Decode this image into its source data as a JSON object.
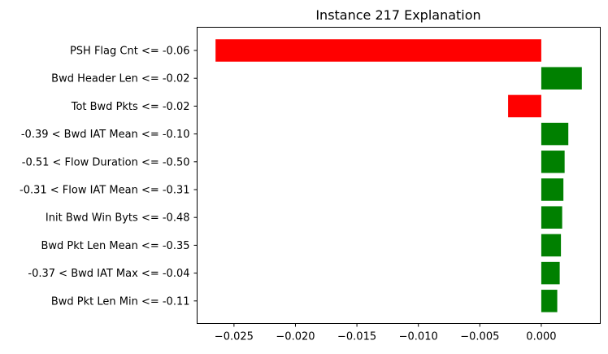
{
  "chart_data": {
    "type": "bar",
    "orientation": "horizontal",
    "title": "Instance 217 Explanation",
    "categories": [
      "PSH Flag Cnt <= -0.06",
      "Bwd Header Len <= -0.02",
      "Tot Bwd Pkts <= -0.02",
      "-0.39 < Bwd IAT Mean <= -0.10",
      "-0.51 < Flow Duration <= -0.50",
      "-0.31 < Flow IAT Mean <= -0.31",
      "Init Bwd Win Byts <= -0.48",
      "Bwd Pkt Len Mean <= -0.35",
      "-0.37 < Bwd IAT Max <= -0.04",
      "Bwd Pkt Len Min <= -0.11"
    ],
    "values": [
      -0.0265,
      0.0033,
      -0.0027,
      0.0022,
      0.0019,
      0.0018,
      0.0017,
      0.0016,
      0.0015,
      0.0013
    ],
    "xlim": [
      -0.028,
      0.0048
    ],
    "xticks": [
      -0.025,
      -0.02,
      -0.015,
      -0.01,
      -0.005,
      0.0
    ],
    "xtick_labels": [
      "−0.025",
      "−0.020",
      "−0.015",
      "−0.010",
      "−0.005",
      "0.000"
    ],
    "positive_color": "#008000",
    "negative_color": "#ff0000",
    "grid": false,
    "xlabel": "",
    "ylabel": ""
  }
}
